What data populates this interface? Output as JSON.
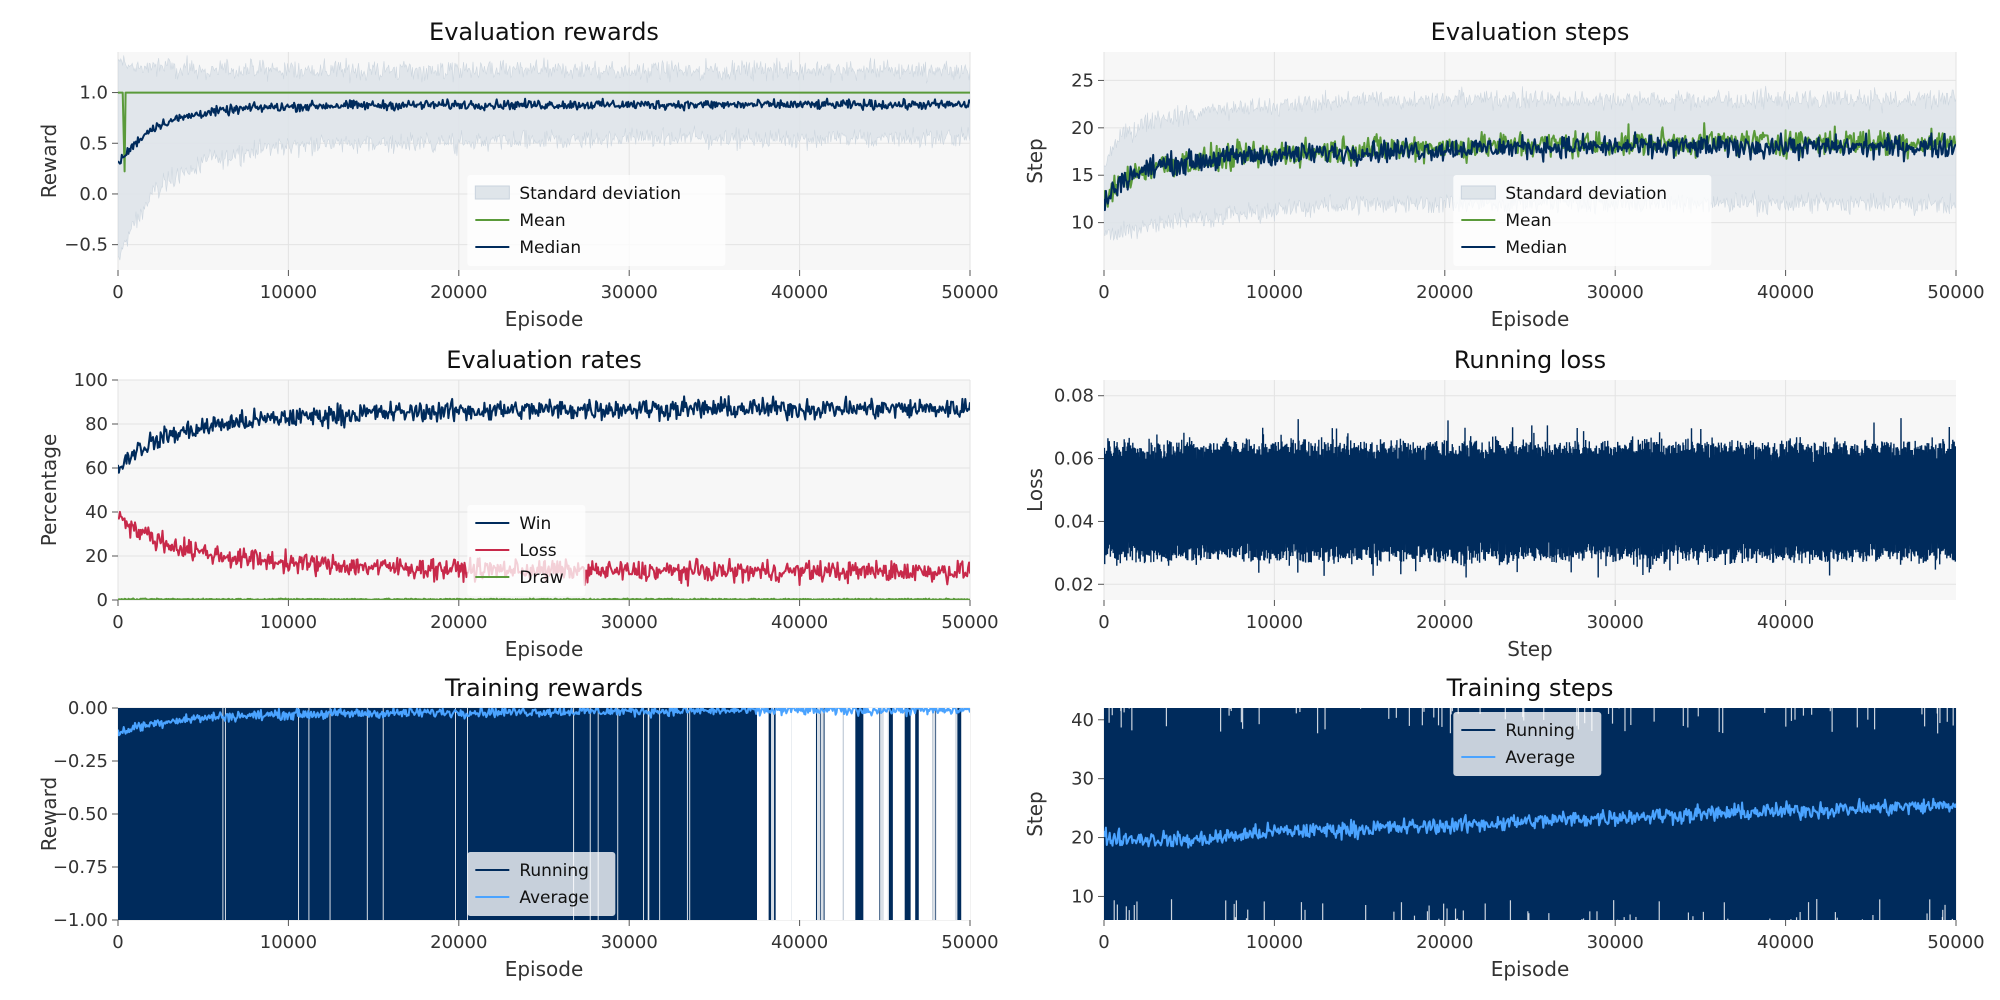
{
  "colors": {
    "navy": "#002b5c",
    "green": "#5a9a3a",
    "red": "#c8294a",
    "lightblue": "#4aa3ff",
    "band": "#dfe5ea",
    "plotbg": "#f7f7f7",
    "grid": "#e3e3e3"
  },
  "chart_data": [
    {
      "id": "eval-rewards",
      "type": "line",
      "title": "Evaluation rewards",
      "xlabel": "Episode",
      "ylabel": "Reward",
      "xlim": [
        0,
        50000
      ],
      "ylim": [
        -0.75,
        1.4
      ],
      "xticks": [
        0,
        10000,
        20000,
        30000,
        40000,
        50000
      ],
      "yticks": [
        -0.5,
        0.0,
        0.5,
        1.0
      ],
      "ytick_decimals": 1,
      "legend": "bottom-center",
      "series": [
        {
          "name": "Standard deviation",
          "kind": "band",
          "color": "#dfe5ea",
          "x": [
            0,
            300,
            1000,
            2000,
            3000,
            5000,
            8000,
            12000,
            20000,
            30000,
            40000,
            50000
          ],
          "lower": [
            -0.7,
            -0.5,
            -0.3,
            0.0,
            0.15,
            0.3,
            0.45,
            0.5,
            0.5,
            0.55,
            0.55,
            0.55
          ],
          "upper": [
            1.3,
            1.3,
            1.25,
            1.25,
            1.25,
            1.22,
            1.22,
            1.22,
            1.22,
            1.22,
            1.22,
            1.22
          ]
        },
        {
          "name": "Mean",
          "kind": "line",
          "color": "#5a9a3a",
          "x": [
            0,
            300,
            380,
            420,
            500,
            50000
          ],
          "y": [
            1.0,
            1.0,
            0.0,
            1.0,
            1.0,
            1.0
          ]
        },
        {
          "name": "Median",
          "kind": "line",
          "color": "#002b5c",
          "x": [
            0,
            1000,
            2000,
            3000,
            5000,
            8000,
            12000,
            20000,
            30000,
            40000,
            50000
          ],
          "y": [
            0.3,
            0.5,
            0.65,
            0.72,
            0.8,
            0.85,
            0.87,
            0.88,
            0.88,
            0.88,
            0.88
          ],
          "noise": 0.04
        }
      ]
    },
    {
      "id": "eval-steps",
      "type": "line",
      "title": "Evaluation steps",
      "xlabel": "Episode",
      "ylabel": "Step",
      "xlim": [
        0,
        50000
      ],
      "ylim": [
        5,
        28
      ],
      "xticks": [
        0,
        10000,
        20000,
        30000,
        40000,
        50000
      ],
      "yticks": [
        10,
        15,
        20,
        25
      ],
      "ytick_decimals": 0,
      "legend": "bottom-center",
      "series": [
        {
          "name": "Standard deviation",
          "kind": "band",
          "color": "#dfe5ea",
          "x": [
            0,
            1000,
            3000,
            8000,
            15000,
            25000,
            35000,
            45000,
            50000
          ],
          "lower": [
            9,
            9,
            10,
            11,
            12,
            12,
            12,
            12,
            12
          ],
          "upper": [
            16,
            19,
            21,
            22,
            23,
            23,
            23,
            23,
            23
          ]
        },
        {
          "name": "Mean",
          "kind": "line",
          "color": "#5a9a3a",
          "x": [
            0,
            1000,
            3000,
            8000,
            15000,
            25000,
            35000,
            45000,
            50000
          ],
          "y": [
            12,
            14.5,
            16,
            17,
            17.8,
            18.2,
            18.5,
            18.5,
            18.5
          ],
          "noise": 1.2
        },
        {
          "name": "Median",
          "kind": "line",
          "color": "#002b5c",
          "x": [
            0,
            1000,
            3000,
            8000,
            15000,
            25000,
            35000,
            45000,
            50000
          ],
          "y": [
            12,
            14.5,
            16,
            17,
            17.5,
            18,
            18,
            18,
            18
          ],
          "noise": 1.0
        }
      ]
    },
    {
      "id": "eval-rates",
      "type": "line",
      "title": "Evaluation rates",
      "xlabel": "Episode",
      "ylabel": "Percentage",
      "xlim": [
        0,
        50000
      ],
      "ylim": [
        0,
        100
      ],
      "xticks": [
        0,
        10000,
        20000,
        30000,
        40000,
        50000
      ],
      "yticks": [
        0,
        20,
        40,
        60,
        80,
        100
      ],
      "ytick_decimals": 0,
      "legend": "bottom-center",
      "series": [
        {
          "name": "Win",
          "kind": "line",
          "color": "#002b5c",
          "x": [
            0,
            1000,
            3000,
            6000,
            10000,
            15000,
            20000,
            30000,
            40000,
            50000
          ],
          "y": [
            60,
            68,
            75,
            80,
            83,
            85,
            86,
            87,
            87,
            87
          ],
          "noise": 4
        },
        {
          "name": "Loss",
          "kind": "line",
          "color": "#c8294a",
          "x": [
            0,
            1000,
            3000,
            6000,
            10000,
            15000,
            20000,
            30000,
            40000,
            50000
          ],
          "y": [
            40,
            32,
            25,
            20,
            17,
            15,
            14,
            13,
            13,
            13
          ],
          "noise": 4
        },
        {
          "name": "Draw",
          "kind": "line",
          "color": "#5a9a3a",
          "x": [
            0,
            50000
          ],
          "y": [
            0.3,
            0.3
          ],
          "noise": 0.3
        }
      ]
    },
    {
      "id": "running-loss",
      "type": "line",
      "title": "Running loss",
      "xlabel": "Step",
      "ylabel": "Loss",
      "xlim": [
        0,
        50000
      ],
      "ylim": [
        0.015,
        0.085
      ],
      "xticks": [
        0,
        10000,
        20000,
        30000,
        40000
      ],
      "yticks": [
        0.02,
        0.04,
        0.06,
        0.08
      ],
      "ytick_decimals": 2,
      "legend": "none",
      "series": [
        {
          "name": "",
          "kind": "noise",
          "color": "#002b5c",
          "x": [
            0,
            50000
          ],
          "lower": [
            0.03,
            0.03
          ],
          "upper": [
            0.063,
            0.063
          ],
          "spike_min": 0.022,
          "spike_max": 0.073
        }
      ]
    },
    {
      "id": "training-rewards",
      "type": "line",
      "title": "Training rewards",
      "xlabel": "Episode",
      "ylabel": "Reward",
      "xlim": [
        0,
        50000
      ],
      "ylim": [
        -1.0,
        0.0
      ],
      "xticks": [
        0,
        10000,
        20000,
        30000,
        40000,
        50000
      ],
      "yticks": [
        -1.0,
        -0.75,
        -0.5,
        -0.25,
        0.0
      ],
      "ytick_decimals": 2,
      "legend": "bottom-center",
      "series": [
        {
          "name": "Running",
          "kind": "fill",
          "color": "#002b5c",
          "x": [
            0,
            37500,
            50000
          ],
          "lower": [
            -1.0,
            -1.0,
            -1.0
          ],
          "upper": [
            0.0,
            0.0,
            0.0
          ]
        },
        {
          "name": "Average",
          "kind": "line",
          "color": "#4aa3ff",
          "x": [
            0,
            1000,
            3000,
            6000,
            10000,
            20000,
            30000,
            40000,
            50000
          ],
          "y": [
            -0.12,
            -0.09,
            -0.06,
            -0.04,
            -0.03,
            -0.02,
            -0.015,
            -0.01,
            -0.01
          ],
          "noise": 0.02
        }
      ]
    },
    {
      "id": "training-steps",
      "type": "line",
      "title": "Training steps",
      "xlabel": "Episode",
      "ylabel": "Step",
      "xlim": [
        0,
        50000
      ],
      "ylim": [
        6,
        42
      ],
      "xticks": [
        0,
        10000,
        20000,
        30000,
        40000,
        50000
      ],
      "yticks": [
        10,
        20,
        30,
        40
      ],
      "ytick_decimals": 0,
      "legend": "top-center",
      "series": [
        {
          "name": "Running",
          "kind": "fill",
          "color": "#002b5c",
          "x": [
            0,
            50000
          ],
          "lower": [
            6,
            6
          ],
          "upper": [
            42,
            42
          ]
        },
        {
          "name": "Average",
          "kind": "line",
          "color": "#4aa3ff",
          "x": [
            0,
            5000,
            10000,
            20000,
            30000,
            40000,
            45000,
            50000
          ],
          "y": [
            20,
            19.5,
            21,
            22,
            23.5,
            24.5,
            25,
            25.5
          ],
          "noise": 1.2
        }
      ]
    }
  ]
}
